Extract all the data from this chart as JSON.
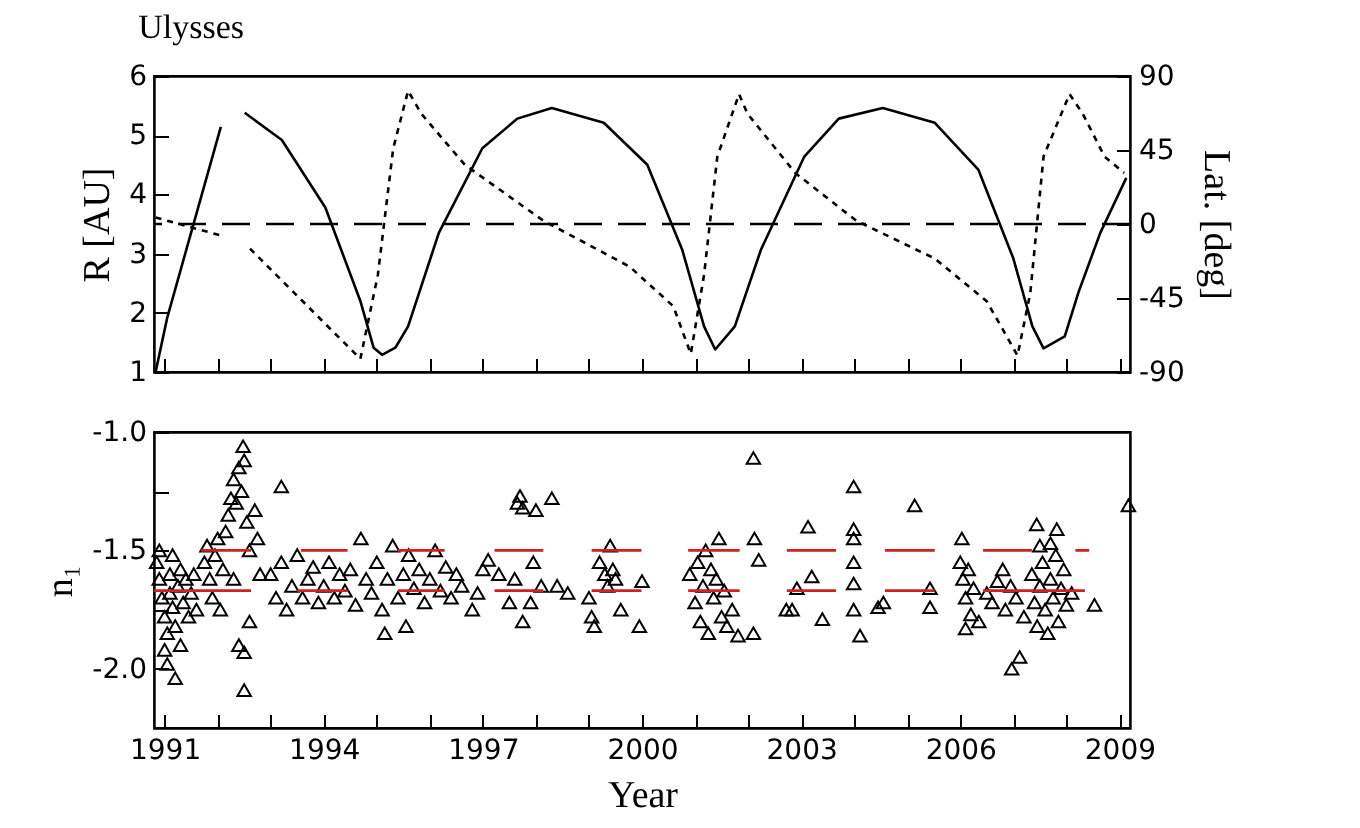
{
  "chart_data": [
    {
      "type": "line",
      "title": "Ulysses",
      "ylabel": "R [AU]",
      "y2label": "Lat. [deg]",
      "xlim": [
        1990.8,
        2009.2
      ],
      "xticks": [
        {
          "value": 1991,
          "label": null
        },
        {
          "value": 1992,
          "label": null
        },
        {
          "value": 1993,
          "label": null
        },
        {
          "value": 1994,
          "label": null
        },
        {
          "value": 1995,
          "label": null
        },
        {
          "value": 1996,
          "label": null
        },
        {
          "value": 1997,
          "label": null
        },
        {
          "value": 1998,
          "label": null
        },
        {
          "value": 1999,
          "label": null
        },
        {
          "value": 2000,
          "label": null
        },
        {
          "value": 2001,
          "label": null
        },
        {
          "value": 2002,
          "label": null
        },
        {
          "value": 2003,
          "label": null
        },
        {
          "value": 2004,
          "label": null
        },
        {
          "value": 2005,
          "label": null
        },
        {
          "value": 2006,
          "label": null
        },
        {
          "value": 2007,
          "label": null
        },
        {
          "value": 2008,
          "label": null
        },
        {
          "value": 2009,
          "label": null
        }
      ],
      "ylim": [
        1,
        6
      ],
      "yticks": [
        1,
        2,
        3,
        4,
        5,
        6
      ],
      "y2lim": [
        -90,
        90
      ],
      "y2ticks": [
        -90,
        -45,
        0,
        45,
        90
      ],
      "tick_labels": "y",
      "ref_lines": [
        {
          "axis": "y2",
          "value": 0,
          "color": "#000000",
          "line_style": "dashed"
        }
      ],
      "series": [
        {
          "color": "#000000",
          "line_style": "solid",
          "x": [
            1990.83,
            1991.05,
            1992.06,
            1992.3,
            1992.51,
            1993.21,
            1994.03,
            1994.69,
            1994.94,
            1995.1,
            1995.35,
            1995.59,
            1996.17,
            1996.99,
            1997.65,
            1998.3,
            1999.28,
            2000.1,
            2000.76,
            2001.17,
            2001.38,
            2001.75,
            2002.24,
            2003.06,
            2003.71,
            2004.54,
            2005.52,
            2006.34,
            2007.0,
            2007.36,
            2007.57,
            2007.97,
            2008.23,
            2008.64,
            2009.13
          ],
          "values": [
            1,
            1.92,
            5.14,
            null,
            5.38,
            4.92,
            3.78,
            2.2,
            1.41,
            1.29,
            1.41,
            1.77,
            3.35,
            4.78,
            5.28,
            5.46,
            5.21,
            4.5,
            3.06,
            1.77,
            1.38,
            1.77,
            3.06,
            4.64,
            5.28,
            5.46,
            5.21,
            4.42,
            2.92,
            1.77,
            1.4,
            1.6,
            2.35,
            3.35,
            4.28
          ]
        },
        {
          "axis": "y2",
          "color": "#000000",
          "line_style": "dashed",
          "x": [
            1990.83,
            1992.06,
            1992.3,
            1992.61,
            1994.69,
            1995.02,
            1995.31,
            1995.59,
            1995.84,
            1996.66,
            1998.14,
            1999.77,
            2000.59,
            2000.92,
            2001.17,
            2001.42,
            2001.83,
            2001.99,
            2002.89,
            2004.04,
            2005.52,
            2006.5,
            2007.08,
            2007.32,
            2007.57,
            2008.06,
            2008.31,
            2008.72,
            2009.09
          ],
          "values": [
            4,
            -7,
            null,
            -15,
            -82,
            -31,
            46,
            81,
            67,
            36,
            2,
            -26,
            -50,
            -79,
            -31,
            41,
            79,
            67,
            31,
            2,
            -21,
            -47,
            -80,
            -42,
            41,
            79,
            67,
            41,
            31
          ]
        }
      ]
    },
    {
      "type": "scatter",
      "xlabel": "Year",
      "ylabel": "n₁",
      "xlim": [
        1990.8,
        2009.2
      ],
      "xticks": [
        1991,
        {
          "value": 1992,
          "label": null
        },
        {
          "value": 1993,
          "label": null
        },
        1994,
        {
          "value": 1995,
          "label": null
        },
        {
          "value": 1996,
          "label": null
        },
        1997,
        {
          "value": 1998,
          "label": null
        },
        {
          "value": 1999,
          "label": null
        },
        2000,
        {
          "value": 2001,
          "label": null
        },
        {
          "value": 2002,
          "label": null
        },
        2003,
        {
          "value": 2004,
          "label": null
        },
        {
          "value": 2005,
          "label": null
        },
        2006,
        {
          "value": 2007,
          "label": null
        },
        {
          "value": 2008,
          "label": null
        },
        2009
      ],
      "ylim": [
        -2.25,
        -1.0
      ],
      "yticks": [
        {
          "value": -2.0,
          "label": "-2.0"
        },
        {
          "value": -1.75,
          "label": null
        },
        {
          "value": -1.5,
          "label": "-1.5"
        },
        {
          "value": -1.25,
          "label": null
        },
        {
          "value": -1.0,
          "label": "-1.0"
        }
      ],
      "series": [
        {
          "marker": "triangle",
          "color": "#000000",
          "x": [
            1990.85,
            1990.9,
            1990.95,
            1991.0,
            1991.05,
            1991.05,
            1991.1,
            1991.1,
            1991.15,
            1991.2,
            1991.2,
            1991.25,
            1991.3,
            1991.3,
            1991.35,
            1991.4,
            1991.45,
            1991.5,
            1991.55,
            1991.6,
            1990.9,
            1991.15,
            1991.0,
            1991.75,
            1991.8,
            1991.85,
            1991.9,
            1991.95,
            1992.0,
            1992.05,
            1992.1,
            1992.15,
            1992.2,
            1992.25,
            1992.3,
            1992.3,
            1992.35,
            1992.4,
            1992.4,
            1992.45,
            1992.48,
            1992.5,
            1992.5,
            1992.5,
            1992.55,
            1992.6,
            1992.6,
            1992.7,
            1992.75,
            1992.8,
            1993.2,
            1993.0,
            1993.1,
            1993.2,
            1993.3,
            1993.4,
            1993.5,
            1993.6,
            1993.7,
            1993.8,
            1993.9,
            1994.0,
            1994.1,
            1994.2,
            1994.3,
            1994.4,
            1994.5,
            1994.6,
            1994.7,
            1994.8,
            1994.9,
            1995.0,
            1995.1,
            1995.15,
            1995.2,
            1995.3,
            1995.4,
            1995.5,
            1995.55,
            1995.6,
            1995.7,
            1995.8,
            1995.9,
            1996.0,
            1996.1,
            1996.2,
            1996.3,
            1996.4,
            1996.5,
            1996.6,
            1996.8,
            1996.9,
            1997.0,
            1997.1,
            1997.3,
            1997.5,
            1997.6,
            1997.65,
            1997.7,
            1997.75,
            1997.75,
            1997.9,
            1997.95,
            1998.0,
            1998.1,
            1998.3,
            1998.4,
            1998.6,
            1999.0,
            1999.05,
            1999.1,
            1999.2,
            1999.3,
            1999.35,
            1999.4,
            1999.45,
            1999.5,
            1999.6,
            1999.95,
            2000.0,
            2000.9,
            2001.0,
            2001.05,
            2001.1,
            2001.15,
            2001.2,
            2001.25,
            2001.3,
            2001.35,
            2001.4,
            2001.45,
            2001.5,
            2001.55,
            2001.6,
            2001.7,
            2001.81,
            2002.1,
            2003.99,
            2005.14,
            2003.13,
            2002.12,
            2002.2,
            2003.99,
            2003.99,
            2003.99,
            2003.99,
            2003.99,
            2004.11,
            2002.92,
            2003.2,
            2002.72,
            2002.83,
            2003.4,
            2004.45,
            2004.55,
            2005.43,
            2005.43,
            2002.1,
            2006.0,
            2006.03,
            2006.05,
            2006.1,
            2006.1,
            2006.15,
            2006.2,
            2006.25,
            2006.35,
            2006.5,
            2006.6,
            2006.7,
            2006.8,
            2006.85,
            2006.95,
            2006.97,
            2007.05,
            2007.12,
            2007.2,
            2007.35,
            2007.4,
            2007.44,
            2007.45,
            2007.5,
            2007.5,
            2007.55,
            2007.6,
            2007.65,
            2007.7,
            2007.7,
            2007.75,
            2007.8,
            2007.82,
            2007.85,
            2007.9,
            2007.95,
            2008.0,
            2008.1,
            2008.53,
            2009.17
          ],
          "values": [
            -1.55,
            -1.62,
            -1.7,
            -1.78,
            -1.85,
            -1.98,
            -1.6,
            -1.68,
            -1.74,
            -1.82,
            -2.04,
            -1.65,
            -1.58,
            -1.9,
            -1.72,
            -1.62,
            -1.78,
            -1.68,
            -1.6,
            -1.75,
            -1.5,
            -1.52,
            -1.92,
            -1.55,
            -1.48,
            -1.62,
            -1.7,
            -1.52,
            -1.45,
            -1.75,
            -1.58,
            -1.42,
            -1.35,
            -1.28,
            -1.2,
            -1.62,
            -1.3,
            -1.15,
            -1.9,
            -1.25,
            -1.06,
            -1.12,
            -2.09,
            -1.93,
            -1.38,
            -1.5,
            -1.8,
            -1.33,
            -1.45,
            -1.6,
            -1.23,
            -1.6,
            -1.7,
            -1.55,
            -1.75,
            -1.65,
            -1.52,
            -1.7,
            -1.62,
            -1.57,
            -1.72,
            -1.65,
            -1.55,
            -1.7,
            -1.6,
            -1.67,
            -1.58,
            -1.73,
            -1.45,
            -1.62,
            -1.68,
            -1.55,
            -1.75,
            -1.85,
            -1.62,
            -1.48,
            -1.7,
            -1.6,
            -1.82,
            -1.52,
            -1.66,
            -1.58,
            -1.72,
            -1.62,
            -1.5,
            -1.67,
            -1.57,
            -1.7,
            -1.6,
            -1.65,
            -1.75,
            -1.68,
            -1.58,
            -1.54,
            -1.6,
            -1.72,
            -1.62,
            -1.3,
            -1.27,
            -1.32,
            -1.8,
            -1.72,
            -1.55,
            -1.33,
            -1.65,
            -1.28,
            -1.65,
            -1.68,
            -1.7,
            -1.78,
            -1.82,
            -1.55,
            -1.6,
            -1.65,
            -1.48,
            -1.58,
            -1.62,
            -1.75,
            -1.82,
            -1.63,
            -1.6,
            -1.72,
            -1.55,
            -1.8,
            -1.65,
            -1.5,
            -1.85,
            -1.58,
            -1.7,
            -1.62,
            -1.45,
            -1.78,
            -1.67,
            -1.82,
            -1.75,
            -1.86,
            -1.11,
            -1.23,
            -1.31,
            -1.4,
            -1.45,
            -1.54,
            -1.41,
            -1.45,
            -1.55,
            -1.64,
            -1.75,
            -1.86,
            -1.66,
            -1.61,
            -1.75,
            -1.75,
            -1.79,
            -1.74,
            -1.72,
            -1.66,
            -1.74,
            -1.85,
            -1.55,
            -1.45,
            -1.62,
            -1.7,
            -1.83,
            -1.58,
            -1.77,
            -1.66,
            -1.8,
            -1.68,
            -1.72,
            -1.63,
            -1.58,
            -1.75,
            -1.65,
            -2.0,
            -1.7,
            -1.95,
            -1.78,
            -1.6,
            -1.72,
            -1.39,
            -1.82,
            -1.48,
            -1.65,
            -1.55,
            -1.75,
            -1.85,
            -1.47,
            -1.62,
            -1.7,
            -1.52,
            -1.41,
            -1.8,
            -1.66,
            -1.58,
            -1.73,
            -1.68,
            -1.73,
            -1.31
          ]
        },
        {
          "type": "line",
          "color": "#cc2222",
          "x": [
            1991.69,
            1992.63,
            1992.9,
            1993.57,
            1994.45,
            1994.8,
            1995.4,
            1996.28,
            1996.7,
            1997.22,
            1998.14,
            1998.6,
            1999.05,
            1999.99,
            2000.4,
            2000.87,
            2001.84,
            2002.3,
            2002.73,
            2003.66,
            2004.1,
            2004.58,
            2005.52,
            2006.0,
            2006.43,
            2007.35,
            2007.8,
            2008.17,
            2008.43
          ],
          "values": [
            -1.5,
            -1.5,
            null,
            -1.5,
            -1.5,
            null,
            -1.5,
            -1.5,
            null,
            -1.5,
            -1.5,
            null,
            -1.5,
            -1.5,
            null,
            -1.5,
            -1.5,
            null,
            -1.5,
            -1.5,
            null,
            -1.5,
            -1.5,
            null,
            -1.5,
            -1.5,
            null,
            -1.5,
            -1.5
          ]
        },
        {
          "type": "line",
          "color": "#cc2222",
          "x": [
            1990.8,
            1992.63,
            1992.9,
            1993.5,
            1994.45,
            1994.8,
            1995.4,
            1996.28,
            1996.7,
            1997.22,
            1998.14,
            1998.6,
            1999.05,
            1999.99,
            2000.4,
            2000.87,
            2001.84,
            2002.3,
            2002.73,
            2003.66,
            2004.1,
            2004.58,
            2005.52,
            2006.0,
            2006.43,
            2008.35
          ],
          "values": [
            -1.67,
            -1.67,
            null,
            -1.67,
            -1.67,
            null,
            -1.67,
            -1.67,
            null,
            -1.67,
            -1.67,
            null,
            -1.67,
            -1.67,
            null,
            -1.67,
            -1.67,
            null,
            -1.67,
            -1.67,
            null,
            -1.67,
            -1.67,
            null,
            -1.67,
            -1.67
          ]
        }
      ]
    }
  ]
}
